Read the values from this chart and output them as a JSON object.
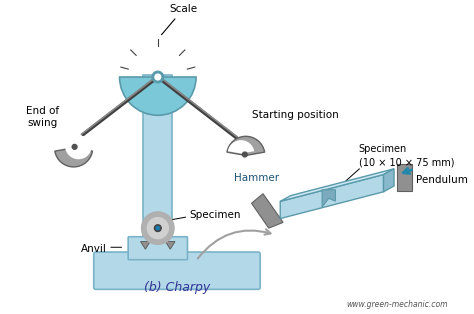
{
  "bg_color": "#ffffff",
  "title": "(b) Charpy",
  "watermark": "www.green-mechanic.com",
  "labels": {
    "scale": "Scale",
    "starting_position": "Starting position",
    "hammer": "Hammer",
    "end_of_swing": "End of\nswing",
    "anvil": "Anvil",
    "specimen_main": "Specimen",
    "specimen_detail": "Specimen\n(10 × 10 × 75 mm)",
    "pendulum": "Pendulum"
  },
  "colors": {
    "frame_fill": "#b3d9e8",
    "frame_edge": "#7ab3c8",
    "hammer_fill": "#a0a0a0",
    "hammer_edge": "#606060",
    "scale_fill": "#7ac8d8",
    "scale_edge": "#5a9aaa",
    "specimen_fill": "#b3d9e8",
    "specimen_edge": "#5a9aaa",
    "rod_color": "#404040",
    "text_color": "#1a5276",
    "arrow_color": "#a0a0a0",
    "bg_color": "#ffffff"
  }
}
